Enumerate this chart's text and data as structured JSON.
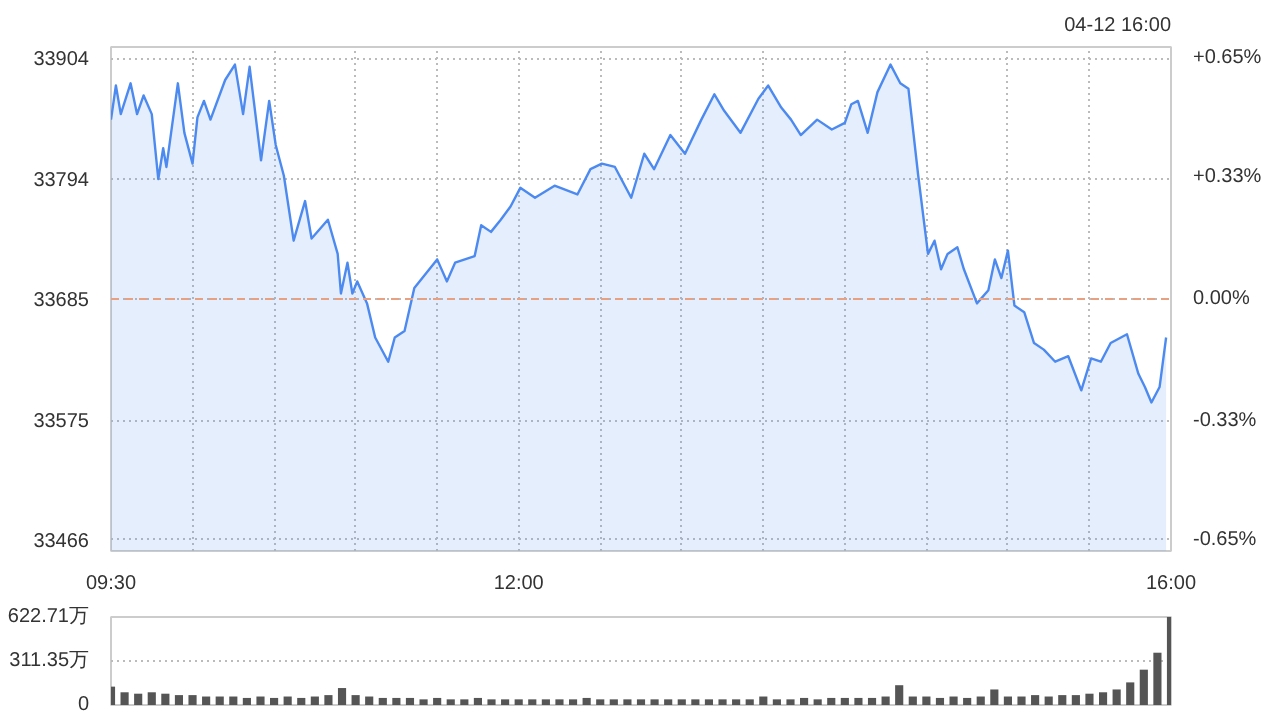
{
  "chart_data": [
    {
      "type": "area",
      "annotations": [
        "04-12 16:00"
      ],
      "x": [
        9.5,
        9.53,
        9.56,
        9.62,
        9.66,
        9.7,
        9.75,
        9.79,
        9.82,
        9.84,
        9.91,
        9.95,
        10.0,
        10.03,
        10.07,
        10.11,
        10.2,
        10.26,
        10.31,
        10.35,
        10.42,
        10.47,
        10.51,
        10.56,
        10.62,
        10.69,
        10.73,
        10.83,
        10.89,
        10.91,
        10.95,
        10.98,
        11.01,
        11.07,
        11.12,
        11.2,
        11.24,
        11.3,
        11.36,
        11.5,
        11.56,
        11.61,
        11.73,
        11.77,
        11.83,
        11.89,
        11.95,
        12.01,
        12.1,
        12.22,
        12.36,
        12.44,
        12.51,
        12.59,
        12.69,
        12.77,
        12.83,
        12.93,
        13.02,
        13.12,
        13.2,
        13.26,
        13.36,
        13.47,
        13.53,
        13.61,
        13.67,
        13.73,
        13.83,
        13.92,
        14.0,
        14.04,
        14.08,
        14.14,
        14.2,
        14.28,
        14.34,
        14.39,
        14.45,
        14.51,
        14.55,
        14.59,
        14.63,
        14.69,
        14.73,
        14.81,
        14.88,
        14.92,
        14.96,
        15.0,
        15.04,
        15.1,
        15.16,
        15.22,
        15.29,
        15.37,
        15.45,
        15.51,
        15.57,
        15.63,
        15.73,
        15.8,
        15.84,
        15.88,
        15.93,
        15.97
      ],
      "series": [
        {
          "color": "#4d8af0",
          "values": [
            33848,
            33879,
            33853,
            33881,
            33853,
            33870,
            33853,
            33794,
            33822,
            33805,
            33881,
            33836,
            33808,
            33850,
            33865,
            33848,
            33884,
            33898,
            33853,
            33896,
            33811,
            33865,
            33825,
            33797,
            33738,
            33774,
            33740,
            33757,
            33726,
            33690,
            33718,
            33690,
            33701,
            33681,
            33650,
            33628,
            33650,
            33656,
            33695,
            33721,
            33701,
            33718,
            33724,
            33752,
            33746,
            33757,
            33769,
            33786,
            33777,
            33788,
            33780,
            33803,
            33808,
            33805,
            33777,
            33817,
            33803,
            33834,
            33817,
            33848,
            33871,
            33856,
            33836,
            33867,
            33879,
            33859,
            33848,
            33834,
            33848,
            33839,
            33845,
            33862,
            33865,
            33836,
            33873,
            33898,
            33881,
            33876,
            33797,
            33726,
            33738,
            33712,
            33726,
            33732,
            33712,
            33681,
            33693,
            33721,
            33704,
            33729,
            33679,
            33673,
            33645,
            33639,
            33628,
            33633,
            33602,
            33631,
            33628,
            33645,
            33653,
            33617,
            33605,
            33591,
            33605,
            33650
          ]
        }
      ],
      "xlim": [
        9.5,
        16
      ],
      "xticks": [
        {
          "value": 9.5,
          "label": "09:30"
        },
        {
          "value": 10,
          "label": null
        },
        {
          "value": 10.5,
          "label": null
        },
        {
          "value": 11,
          "label": null
        },
        {
          "value": 11.5,
          "label": null
        },
        {
          "value": 12,
          "label": "12:00"
        },
        {
          "value": 12.5,
          "label": null
        },
        {
          "value": 13,
          "label": null
        },
        {
          "value": 13.5,
          "label": null
        },
        {
          "value": 14,
          "label": null
        },
        {
          "value": 14.5,
          "label": null
        },
        {
          "value": 15,
          "label": null
        },
        {
          "value": 15.5,
          "label": null
        },
        {
          "value": 16,
          "label": "16:00"
        }
      ],
      "ylim": [
        33456,
        33914
      ],
      "yticks": [
        33466,
        33575,
        33685,
        33794,
        33904
      ],
      "y2lim": [
        -0.68,
        0.68
      ],
      "y2ticks": [
        {
          "value": 0.65,
          "label": "+0.65%"
        },
        {
          "value": 0.33,
          "label": "+0.33%"
        },
        {
          "value": 0,
          "label": "0.00%"
        },
        {
          "value": -0.33,
          "label": "-0.33%"
        },
        {
          "value": -0.65,
          "label": "-0.65%"
        }
      ],
      "ref_lines": [
        {
          "axis": "y",
          "value": 33685,
          "color": "#e8a080",
          "line_style": "dashed"
        }
      ],
      "grid": true
    },
    {
      "type": "bar",
      "x": [
        9.5,
        9.5833,
        9.6667,
        9.75,
        9.8333,
        9.9167,
        10.0,
        10.0833,
        10.1667,
        10.25,
        10.3333,
        10.4167,
        10.5,
        10.5833,
        10.6667,
        10.75,
        10.8333,
        10.9167,
        11.0,
        11.0833,
        11.1667,
        11.25,
        11.3333,
        11.4167,
        11.5,
        11.5833,
        11.6667,
        11.75,
        11.8333,
        11.9167,
        12.0,
        12.0833,
        12.1667,
        12.25,
        12.3333,
        12.4167,
        12.5,
        12.5833,
        12.6667,
        12.75,
        12.8333,
        12.9167,
        13.0,
        13.0833,
        13.1667,
        13.25,
        13.3333,
        13.4167,
        13.5,
        13.5833,
        13.6667,
        13.75,
        13.8333,
        13.9167,
        14.0,
        14.0833,
        14.1667,
        14.25,
        14.3333,
        14.4167,
        14.5,
        14.5833,
        14.6667,
        14.75,
        14.8333,
        14.9167,
        15.0,
        15.0833,
        15.1667,
        15.25,
        15.3333,
        15.4167,
        15.5,
        15.5833,
        15.6667,
        15.75,
        15.8333,
        15.9167,
        16.0
      ],
      "values": [
        130,
        90,
        80,
        90,
        80,
        70,
        70,
        60,
        60,
        60,
        50,
        60,
        50,
        60,
        50,
        60,
        70,
        120,
        70,
        60,
        50,
        50,
        50,
        40,
        50,
        40,
        40,
        50,
        40,
        40,
        40,
        40,
        40,
        40,
        40,
        50,
        40,
        40,
        40,
        40,
        40,
        40,
        40,
        40,
        40,
        40,
        40,
        40,
        60,
        40,
        40,
        50,
        40,
        50,
        50,
        50,
        50,
        60,
        140,
        60,
        60,
        50,
        60,
        50,
        60,
        110,
        60,
        60,
        70,
        60,
        70,
        70,
        80,
        90,
        110,
        160,
        250,
        370,
        622.71
      ],
      "color": "#555555",
      "xlim": [
        9.5,
        16
      ],
      "ylim": [
        0,
        622.71
      ],
      "yticks": [
        0,
        {
          "value": 311.35,
          "label": "311.35万"
        },
        {
          "value": 622.71,
          "label": "622.71万"
        }
      ],
      "tick_labels": "y",
      "grid": "y"
    }
  ]
}
